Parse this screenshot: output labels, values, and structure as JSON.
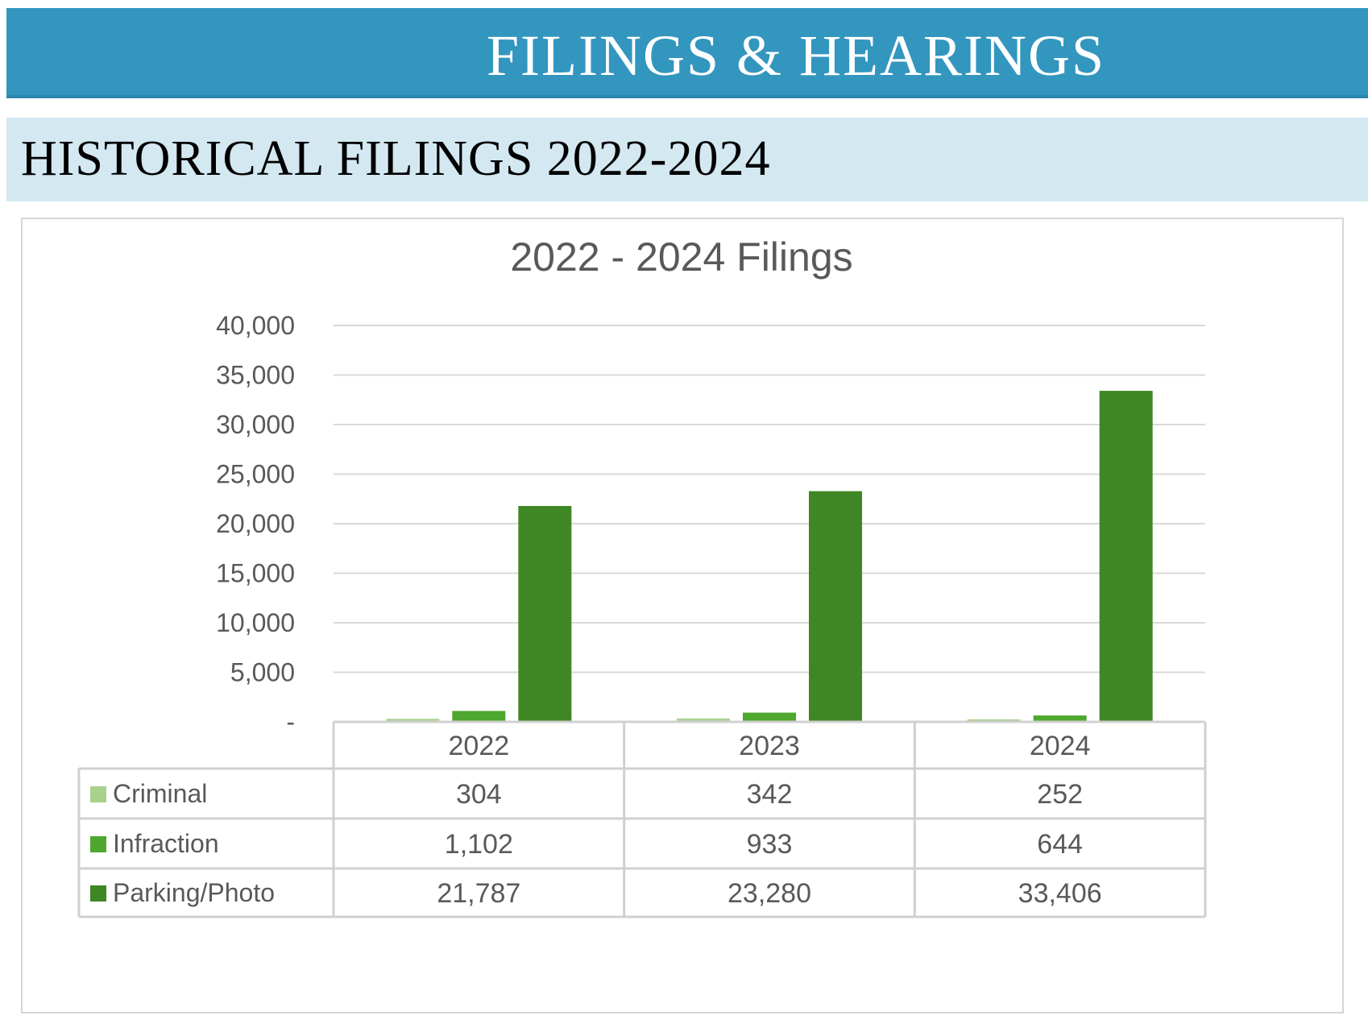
{
  "header": {
    "banner_title": "FILINGS & HEARINGS",
    "section_title": "HISTORICAL FILINGS 2022-2024"
  },
  "colors": {
    "banner": "#3396bf",
    "section_bar": "#d3e8f1",
    "criminal": "#a9d18e",
    "infraction": "#4ea72e",
    "parking_photo": "#3f8724"
  },
  "chart_data": {
    "type": "bar",
    "title": "2022 - 2024 Filings",
    "categories": [
      "2022",
      "2023",
      "2024"
    ],
    "series": [
      {
        "name": "Criminal",
        "values": [
          304,
          342,
          252
        ],
        "labels": [
          "304",
          "342",
          "252"
        ],
        "color": "#a9d18e"
      },
      {
        "name": "Infraction",
        "values": [
          1102,
          933,
          644
        ],
        "labels": [
          "1,102",
          "933",
          "644"
        ],
        "color": "#4ea72e"
      },
      {
        "name": "Parking/Photo",
        "values": [
          21787,
          23280,
          33406
        ],
        "labels": [
          "21,787",
          "23,280",
          "33,406"
        ],
        "color": "#3f8724"
      }
    ],
    "ylim": [
      0,
      40000
    ],
    "yticks": [
      {
        "value": 0,
        "label": "-"
      },
      {
        "value": 5000,
        "label": "5,000"
      },
      {
        "value": 10000,
        "label": "10,000"
      },
      {
        "value": 15000,
        "label": "15,000"
      },
      {
        "value": 20000,
        "label": "20,000"
      },
      {
        "value": 25000,
        "label": "25,000"
      },
      {
        "value": 30000,
        "label": "30,000"
      },
      {
        "value": 35000,
        "label": "35,000"
      },
      {
        "value": 40000,
        "label": "40,000"
      }
    ],
    "grid": true,
    "legend": "data-table"
  }
}
